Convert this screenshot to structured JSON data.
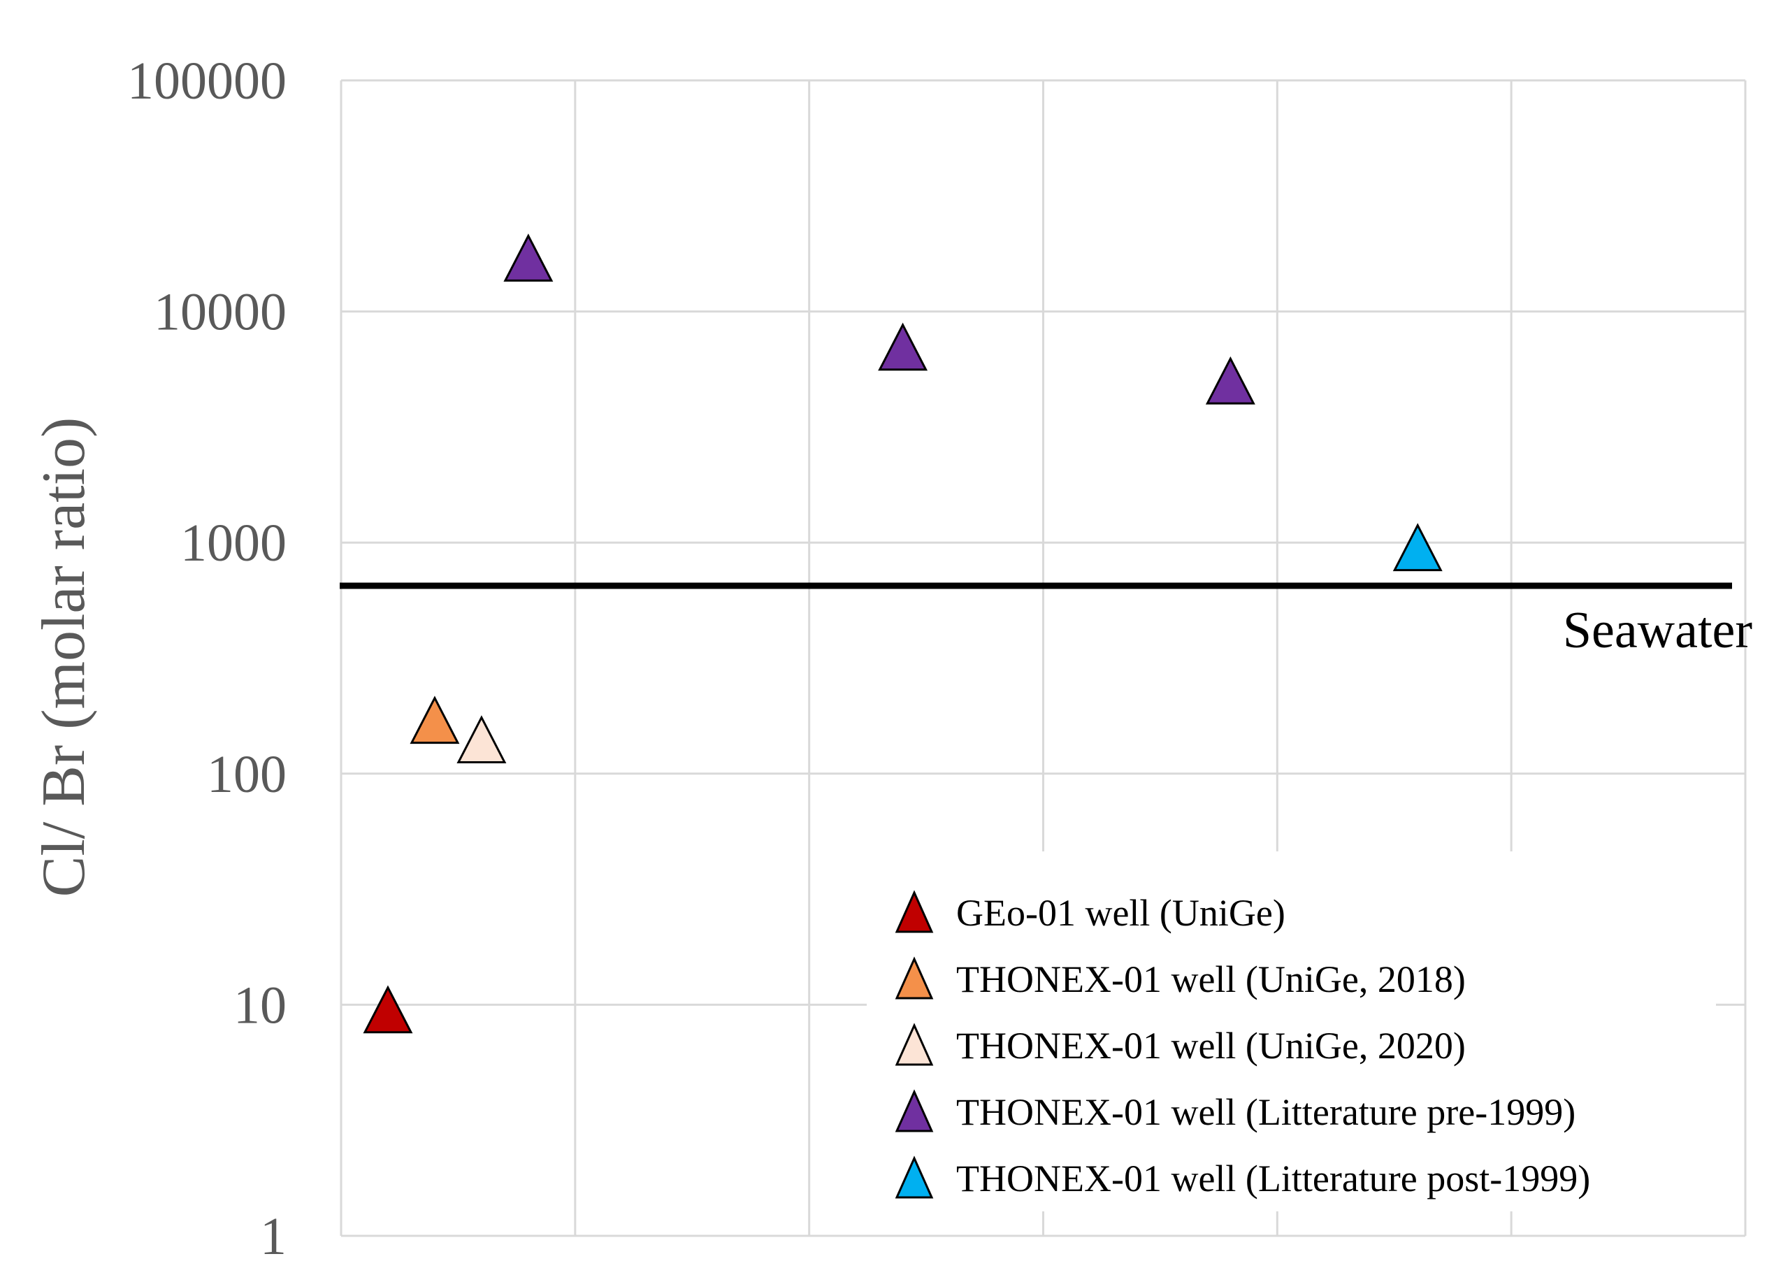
{
  "chart_data": {
    "type": "scatter",
    "title": "",
    "xlabel": "",
    "ylabel": "Cl/ Br (molar ratio)",
    "yscale": "log",
    "ylim": [
      1,
      100000
    ],
    "xlim": [
      0,
      6
    ],
    "yticks": [
      "1",
      "10",
      "100",
      "1000",
      "10000",
      "100000"
    ],
    "grid": true,
    "marker": "triangle",
    "legend_position": "bottom-right",
    "reference_line": {
      "label": "Seawater",
      "y": 650,
      "color": "#000000"
    },
    "series": [
      {
        "name": "GEo-01 well (UniGe)",
        "color": "#C00000",
        "points": [
          {
            "x": 0.2,
            "y": 9.5
          }
        ]
      },
      {
        "name": "THONEX-01 well (UniGe, 2018)",
        "color": "#F4904A",
        "points": [
          {
            "x": 0.4,
            "y": 170
          }
        ]
      },
      {
        "name": "THONEX-01 well (UniGe, 2020)",
        "color": "#FCE4D6",
        "points": [
          {
            "x": 0.6,
            "y": 140
          }
        ]
      },
      {
        "name": "THONEX-01 well (Litterature pre-1999)",
        "color": "#7030A0",
        "points": [
          {
            "x": 0.8,
            "y": 17000
          },
          {
            "x": 2.4,
            "y": 7000
          },
          {
            "x": 3.8,
            "y": 5000
          }
        ]
      },
      {
        "name": "THONEX-01 well (Litterature post-1999)",
        "color": "#00B0F0",
        "points": [
          {
            "x": 4.6,
            "y": 950
          }
        ]
      }
    ]
  }
}
